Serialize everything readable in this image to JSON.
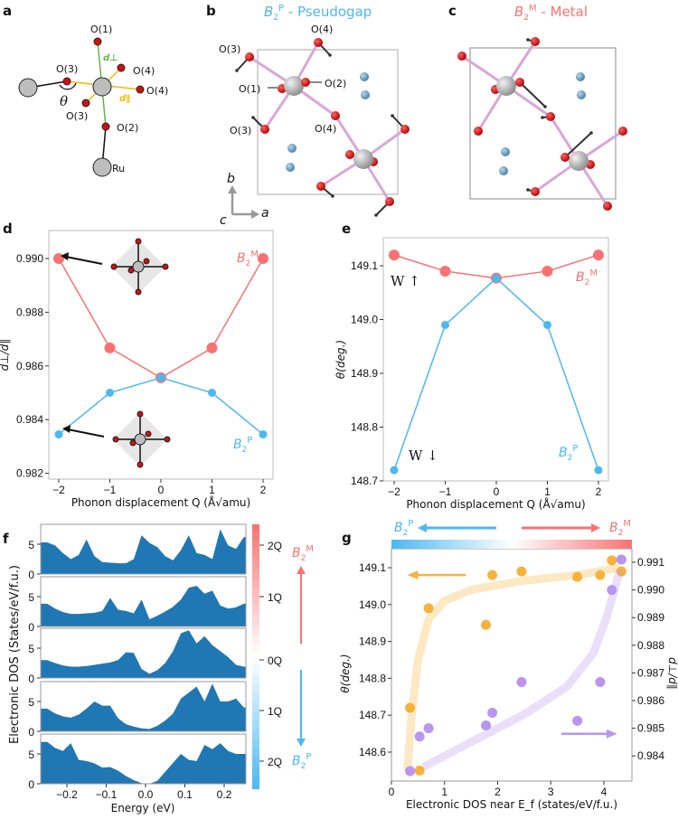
{
  "panel_labels": {
    "a": "a",
    "b": "b",
    "c": "c",
    "d": "d",
    "e": "e",
    "f": "f",
    "g": "g"
  },
  "b2": {
    "B": "B",
    "sub": "2",
    "P": "P",
    "M": "M"
  },
  "titles": {
    "b_suffix": " - Pseudogap",
    "c_suffix": " - Metal"
  },
  "diagram_a": {
    "o1": "O(1)",
    "o3_upper": "O(3)",
    "o4_upper": "O(4)",
    "o4_right": "O(4)",
    "o3_lower": "O(3)",
    "o2": "O(2)",
    "ru": "Ru",
    "theta": "θ",
    "d_perp": "d⊥",
    "d_par": "d∥"
  },
  "diagram_b": {
    "o3_top": "O(3)",
    "o4_top": "O(4)",
    "o1": "O(1)",
    "o2": "O(2)",
    "o3_mid": "O(3)",
    "o4_mid": "O(4)",
    "axis_b": "b",
    "axis_a": "a",
    "axis_c": "c"
  },
  "colors": {
    "metal": "#f87272",
    "pseudogap": "#4cb8f2",
    "dos": "#1f77b4",
    "theta": "#f7b23b",
    "ratio": "#b994f0"
  },
  "chart_data": [
    {
      "panel": "d",
      "type": "line",
      "xlabel": "Phonon displacement Q (Å√amu)",
      "ylabel": "d⊥/d∥",
      "xlim": [
        -2.2,
        2.2
      ],
      "ylim": [
        0.982,
        0.9905
      ],
      "xticks": [
        -2,
        -1,
        0,
        1,
        2
      ],
      "xtick_labels": [
        "−2",
        "−1",
        "0",
        "1",
        "2"
      ],
      "yticks": [
        0.982,
        0.984,
        0.986,
        0.988,
        0.99
      ],
      "ytick_labels": [
        "0.982",
        "0.984",
        "0.986",
        "0.988",
        "0.990"
      ],
      "x": [
        -2,
        -1,
        0,
        1,
        2
      ],
      "series": [
        {
          "name": "B2M",
          "color": "#f87272",
          "values": [
            0.99,
            0.98667,
            0.98556,
            0.98667,
            0.99
          ]
        },
        {
          "name": "B2P",
          "color": "#4cb8f2",
          "values": [
            0.98345,
            0.985,
            0.98556,
            0.985,
            0.98345
          ]
        }
      ]
    },
    {
      "panel": "e",
      "type": "line",
      "xlabel": "Phonon displacement Q (Å√amu)",
      "ylabel": "θ(deg.)",
      "xlim": [
        -2.2,
        2.2
      ],
      "ylim": [
        148.7,
        149.14
      ],
      "xticks": [
        -2,
        -1,
        0,
        1,
        2
      ],
      "xtick_labels": [
        "−2",
        "−1",
        "0",
        "1",
        "2"
      ],
      "yticks": [
        148.7,
        148.8,
        148.9,
        149.0,
        149.1
      ],
      "ytick_labels": [
        "148.7",
        "148.8",
        "148.9",
        "149.0",
        "149.1"
      ],
      "x": [
        -2,
        -1,
        0,
        1,
        2
      ],
      "annotations": [
        "W ↑",
        "W ↓"
      ],
      "series": [
        {
          "name": "B2M",
          "color": "#f87272",
          "values": [
            149.12,
            149.09,
            149.077,
            149.09,
            149.12
          ]
        },
        {
          "name": "B2P",
          "color": "#4cb8f2",
          "values": [
            148.72,
            148.99,
            149.077,
            148.99,
            148.72
          ]
        }
      ]
    },
    {
      "panel": "f",
      "type": "area",
      "xlabel": "Energy (eV)",
      "ylabel": "Electronic DOS (States/eV/f.u.)",
      "xlim": [
        -0.265,
        0.25
      ],
      "ylim": [
        0,
        8.3
      ],
      "xticks": [
        -0.2,
        -0.1,
        0.0,
        0.1,
        0.2
      ],
      "xtick_labels": [
        "−0.2",
        "−0.1",
        "0.0",
        "0.1",
        "0.2"
      ],
      "yticks": [
        0,
        5
      ],
      "ytick_labels": [
        "0",
        "5"
      ],
      "colorbar": {
        "tick_labels": [
          "2Q",
          "1Q",
          "0Q",
          "1Q",
          "2Q"
        ]
      },
      "x": [
        -0.25,
        -0.23,
        -0.21,
        -0.19,
        -0.17,
        -0.15,
        -0.13,
        -0.11,
        -0.09,
        -0.07,
        -0.05,
        -0.03,
        -0.01,
        0.01,
        0.03,
        0.05,
        0.07,
        0.09,
        0.11,
        0.13,
        0.15,
        0.17,
        0.19,
        0.21,
        0.23,
        0.25
      ],
      "series": [
        {
          "name": "2Q B2M",
          "values": [
            5.3,
            4.8,
            3.5,
            2.5,
            3.2,
            5.8,
            3.0,
            2.0,
            1.9,
            1.8,
            1.8,
            2.5,
            6.5,
            5.2,
            4.5,
            3.0,
            2.3,
            4.0,
            6.5,
            3.5,
            3.2,
            2.5,
            7.5,
            4.8,
            4.2,
            6.2
          ]
        },
        {
          "name": "1Q B2M",
          "values": [
            3.8,
            3.0,
            2.4,
            2.1,
            2.1,
            2.2,
            2.3,
            2.6,
            4.8,
            2.8,
            2.6,
            2.2,
            4.5,
            1.2,
            1.8,
            2.5,
            3.3,
            4.5,
            6.5,
            6.8,
            5.5,
            6.0,
            3.5,
            3.0,
            3.2,
            3.8
          ]
        },
        {
          "name": "0Q",
          "values": [
            3.0,
            2.5,
            2.1,
            1.9,
            1.9,
            2.0,
            2.2,
            2.4,
            2.6,
            3.0,
            4.3,
            4.2,
            1.5,
            0.7,
            1.3,
            2.5,
            4.5,
            7.5,
            8.0,
            5.8,
            7.0,
            5.5,
            4.5,
            3.5,
            2.2,
            1.9
          ]
        },
        {
          "name": "1Q B2P",
          "values": [
            3.8,
            3.0,
            2.5,
            2.3,
            2.8,
            3.8,
            5.0,
            4.3,
            4.3,
            2.2,
            1.2,
            0.8,
            0.5,
            0.4,
            0.9,
            1.8,
            3.0,
            5.5,
            6.5,
            7.5,
            5.0,
            8.0,
            5.0,
            5.0,
            5.5,
            4.0
          ]
        },
        {
          "name": "2Q B2P",
          "values": [
            7.0,
            6.0,
            5.5,
            6.8,
            4.0,
            3.8,
            3.4,
            2.7,
            2.8,
            2.2,
            1.3,
            0.6,
            0.1,
            0.0,
            0.5,
            2.0,
            3.5,
            5.0,
            4.0,
            3.8,
            6.5,
            5.8,
            6.8,
            5.5,
            5.0,
            5.0
          ]
        }
      ]
    },
    {
      "panel": "g",
      "type": "scatter",
      "xlabel": "Electronic DOS near E_f (states/eV/f.u.)",
      "ylabel": "θ(deg.)",
      "ylabel_right": "d⊥/d∥",
      "xlim": [
        0,
        4.53
      ],
      "ylim": [
        148.52,
        149.15
      ],
      "ylim_right": [
        0.9832,
        0.9914
      ],
      "xticks": [
        0,
        1,
        2,
        3,
        4
      ],
      "xtick_labels": [
        "0",
        "1",
        "2",
        "3",
        "4"
      ],
      "yticks": [
        148.6,
        148.7,
        148.8,
        148.9,
        149.0,
        149.1
      ],
      "ytick_labels": [
        "148.6",
        "148.7",
        "148.8",
        "148.9",
        "149.0",
        "149.1"
      ],
      "yticks_right": [
        0.984,
        0.985,
        0.986,
        0.987,
        0.988,
        0.989,
        0.99,
        0.991
      ],
      "ytick_labels_right": [
        "0.984",
        "0.985",
        "0.986",
        "0.987",
        "0.988",
        "0.989",
        "0.990",
        "0.991"
      ],
      "series": [
        {
          "name": "θ",
          "axis": "left",
          "color": "#f7b23b",
          "x": [
            0.35,
            0.53,
            0.7,
            1.78,
            1.9,
            2.45,
            3.5,
            3.93,
            4.15,
            4.33
          ],
          "y": [
            148.72,
            148.55,
            148.99,
            148.945,
            149.08,
            149.09,
            149.075,
            149.08,
            149.12,
            149.09
          ],
          "trend": [
            [
              0.3,
              148.55
            ],
            [
              0.38,
              148.7
            ],
            [
              0.5,
              148.85
            ],
            [
              0.7,
              148.96
            ],
            [
              1.0,
              149.01
            ],
            [
              1.5,
              149.04
            ],
            [
              2.5,
              149.065
            ],
            [
              3.5,
              149.08
            ],
            [
              4.3,
              149.1
            ]
          ]
        },
        {
          "name": "d⊥/d∥",
          "axis": "right",
          "color": "#b994f0",
          "x": [
            0.35,
            0.53,
            0.7,
            1.78,
            1.9,
            2.45,
            3.5,
            3.93,
            4.15,
            4.33
          ],
          "y": [
            0.98345,
            0.9847,
            0.985,
            0.9851,
            0.98556,
            0.98667,
            0.98527,
            0.98667,
            0.99,
            0.9911
          ],
          "trend": [
            [
              0.6,
              0.9836
            ],
            [
              1.5,
              0.9845
            ],
            [
              2.5,
              0.9855
            ],
            [
              3.3,
              0.9865
            ],
            [
              3.8,
              0.9877
            ],
            [
              4.05,
              0.989
            ],
            [
              4.2,
              0.99
            ],
            [
              4.3,
              0.9907
            ]
          ]
        }
      ]
    }
  ]
}
